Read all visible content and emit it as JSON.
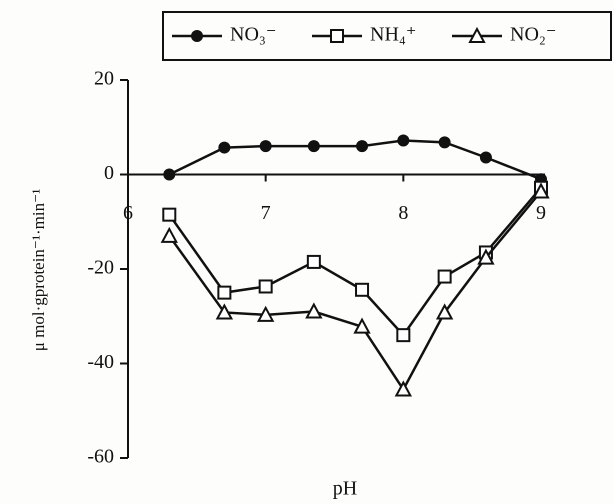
{
  "chart_data": {
    "type": "line",
    "x_label": "pH",
    "y_label": "μ mol·gprotein⁻¹·min⁻¹",
    "x": [
      6.3,
      6.7,
      7.0,
      7.35,
      7.7,
      8.0,
      8.3,
      8.6,
      9.0
    ],
    "series": [
      {
        "name": "NO₃⁻",
        "color": "#111111",
        "marker": "filled-circle",
        "values": [
          0,
          5.7,
          6,
          6,
          6,
          7.2,
          6.8,
          3.6,
          -1
        ]
      },
      {
        "name": "NH₄⁺",
        "color": "#111111",
        "marker": "open-square",
        "values": [
          -8.5,
          -25,
          -23.7,
          -18.5,
          -24.4,
          -34,
          -21.6,
          -16.5,
          -2.8
        ]
      },
      {
        "name": "NO₂⁻",
        "color": "#111111",
        "marker": "open-triangle",
        "values": [
          -13,
          -29.2,
          -29.7,
          -29,
          -32.2,
          -45.5,
          -29.2,
          -17.6,
          -3.6
        ]
      }
    ],
    "xlim": [
      6,
      9
    ],
    "xticks": [
      6,
      7,
      8,
      9
    ],
    "ylim": [
      -60,
      20
    ],
    "yticks": [
      20,
      0,
      -20,
      -40,
      -60
    ],
    "legend": "top"
  }
}
